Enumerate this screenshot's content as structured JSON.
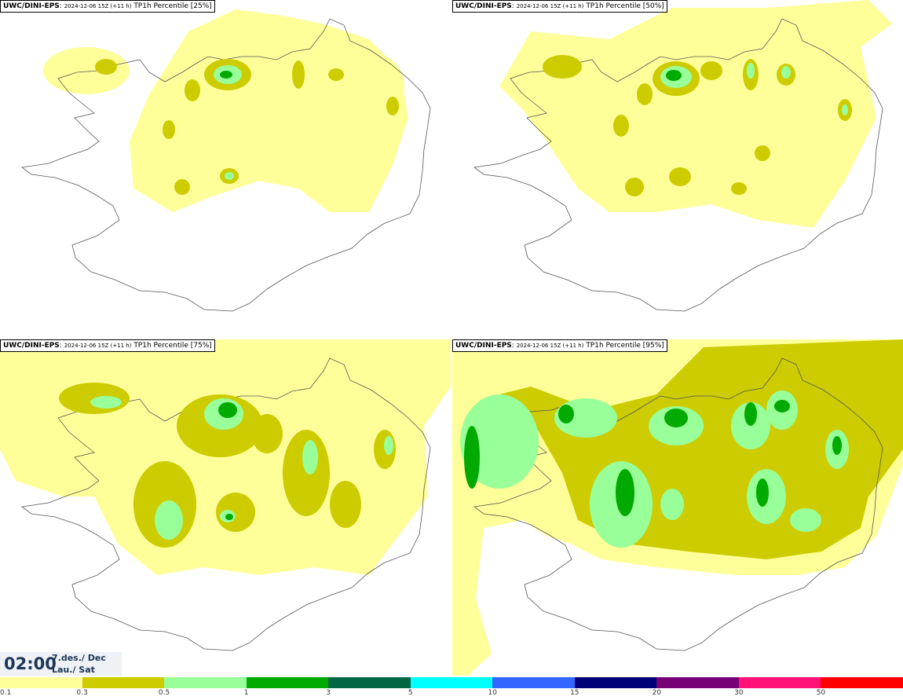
{
  "panels": [
    {
      "model": "UWC/DINI-EPS",
      "date": "2024-12-06 15Z (+11 h)",
      "field": "TP1h Percentile [25%]"
    },
    {
      "model": "UWC/DINI-EPS",
      "date": "2024-12-06 15Z (+11 h)",
      "field": "TP1h Percentile [50%]"
    },
    {
      "model": "UWC/DINI-EPS",
      "date": "2024-12-06 15Z (+11 h)",
      "field": "TP1h Percentile [75%]"
    },
    {
      "model": "UWC/DINI-EPS",
      "date": "2024-12-06 15Z (+11 h)",
      "field": "TP1h Percentile [95%]"
    }
  ],
  "time": {
    "clock": "02:00",
    "date_line1": "7.des./ Dec",
    "date_line2": "Lau./ Sat"
  },
  "legend": {
    "colors": [
      "#ffff99",
      "#cccc00",
      "#99ff99",
      "#00aa00",
      "#006644",
      "#00ffff",
      "#3366ff",
      "#000077",
      "#770077",
      "#ff1177",
      "#ff0000"
    ],
    "labels": [
      "0.1",
      "0.3",
      "0.5",
      "1",
      "3",
      "5",
      "10",
      "15",
      "20",
      "30",
      "50"
    ]
  }
}
